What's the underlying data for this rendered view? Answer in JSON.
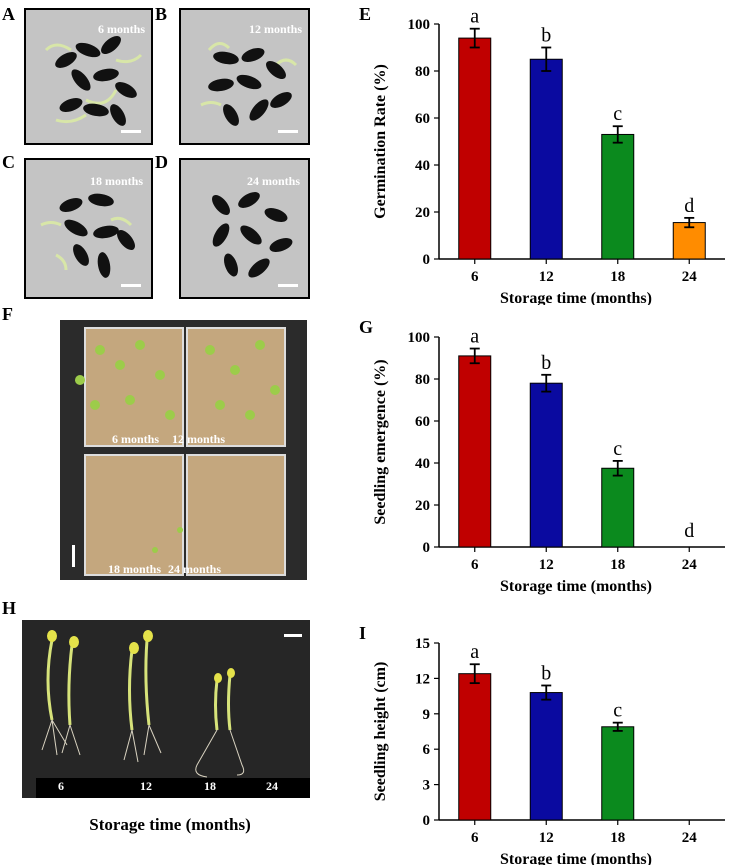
{
  "panels": {
    "A": {
      "letter": "A",
      "label": "6 months"
    },
    "B": {
      "letter": "B",
      "label": "12 months"
    },
    "C": {
      "letter": "C",
      "label": "18 months"
    },
    "D": {
      "letter": "D",
      "label": "24 months"
    },
    "F": {
      "letter": "F",
      "tray_labels": [
        "6 months",
        "12 months",
        "18 months",
        "24 months"
      ]
    },
    "H": {
      "letter": "H",
      "strip_labels": [
        "6",
        "12",
        "18",
        "24"
      ],
      "caption": "Storage time (months)"
    }
  },
  "colors": {
    "red": "#c00000",
    "blue": "#0a0aa0",
    "green": "#0b8a1e",
    "orange": "#ff8c00"
  },
  "chart_data": [
    {
      "letter": "E",
      "type": "bar",
      "categories": [
        "6",
        "12",
        "18",
        "24"
      ],
      "values": [
        94,
        85,
        53,
        15.5
      ],
      "errors": [
        4,
        5,
        3.5,
        2
      ],
      "sig_letters": [
        "a",
        "b",
        "c",
        "d"
      ],
      "colors": [
        "#c00000",
        "#0a0aa0",
        "#0b8a1e",
        "#ff8c00"
      ],
      "xlabel": "Storage time (months)",
      "ylabel": "Germination Rate (%)",
      "ylim": [
        0,
        100
      ],
      "yticks": [
        "0",
        "20",
        "40",
        "60",
        "80",
        "100"
      ]
    },
    {
      "letter": "G",
      "type": "bar",
      "categories": [
        "6",
        "12",
        "18",
        "24"
      ],
      "values": [
        91,
        78,
        37.5,
        0
      ],
      "errors": [
        3.5,
        4,
        3.5,
        0
      ],
      "sig_letters": [
        "a",
        "b",
        "c",
        "d"
      ],
      "colors": [
        "#c00000",
        "#0a0aa0",
        "#0b8a1e",
        "#ff8c00"
      ],
      "xlabel": "Storage time (months)",
      "ylabel": "Seedling emergence (%)",
      "ylim": [
        0,
        100
      ],
      "yticks": [
        "0",
        "20",
        "40",
        "60",
        "80",
        "100"
      ]
    },
    {
      "letter": "I",
      "type": "bar",
      "categories": [
        "6",
        "12",
        "18",
        "24"
      ],
      "values": [
        12.4,
        10.8,
        7.9,
        0
      ],
      "errors": [
        0.8,
        0.6,
        0.35,
        0
      ],
      "sig_letters": [
        "a",
        "b",
        "c",
        ""
      ],
      "colors": [
        "#c00000",
        "#0a0aa0",
        "#0b8a1e",
        "#ff8c00"
      ],
      "xlabel": "Storage time (months)",
      "ylabel": "Seedling height (cm)",
      "ylim": [
        0,
        15
      ],
      "yticks": [
        "0",
        "3",
        "6",
        "9",
        "12",
        "15"
      ]
    }
  ]
}
